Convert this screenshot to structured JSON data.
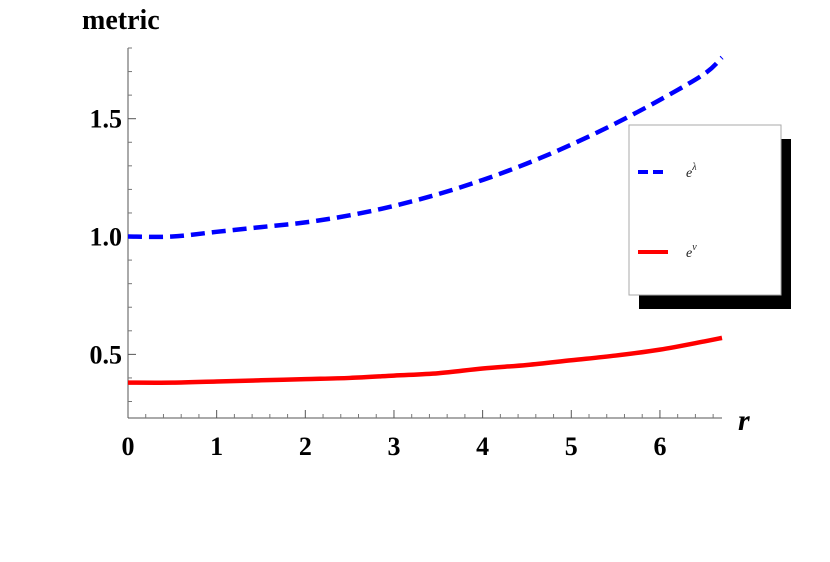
{
  "chart_data": {
    "type": "line",
    "title": "",
    "xlabel": "r",
    "ylabel": "metric",
    "xlim": [
      0,
      6.7
    ],
    "ylim": [
      0.23,
      1.8
    ],
    "x_ticks": [
      0,
      1,
      2,
      3,
      4,
      5,
      6
    ],
    "x_tick_labels": [
      "0",
      "1",
      "2",
      "3",
      "4",
      "5",
      "6"
    ],
    "y_ticks": [
      0.5,
      1.0,
      1.5
    ],
    "y_tick_labels": [
      "0.5",
      "1.0",
      "1.5"
    ],
    "grid": false,
    "legend_position": "right",
    "series": [
      {
        "name_base": "e",
        "name_sup": "λ",
        "color": "#0000ff",
        "dash": "dashed",
        "x": [
          0,
          0.5,
          1,
          1.5,
          2,
          2.5,
          3,
          3.5,
          4,
          4.5,
          5,
          5.5,
          6,
          6.5,
          6.7
        ],
        "values": [
          1.0,
          1.0,
          1.02,
          1.04,
          1.06,
          1.09,
          1.13,
          1.18,
          1.24,
          1.31,
          1.39,
          1.48,
          1.58,
          1.69,
          1.76
        ]
      },
      {
        "name_base": "e",
        "name_sup": "ν",
        "color": "#ff0000",
        "dash": "solid",
        "x": [
          0,
          0.5,
          1,
          1.5,
          2,
          2.5,
          3,
          3.5,
          4,
          4.5,
          5,
          5.5,
          6,
          6.5,
          6.7
        ],
        "values": [
          0.38,
          0.38,
          0.385,
          0.39,
          0.395,
          0.4,
          0.41,
          0.42,
          0.44,
          0.455,
          0.475,
          0.495,
          0.52,
          0.555,
          0.57
        ]
      }
    ]
  }
}
